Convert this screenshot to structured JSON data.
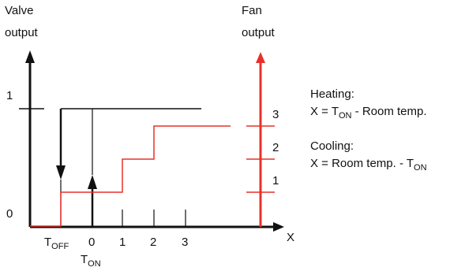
{
  "colors": {
    "black": "#111111",
    "red": "#e8302a"
  },
  "left_axis": {
    "title_line1": "Valve",
    "title_line2": "output",
    "tick_1": "1",
    "tick_0": "0"
  },
  "right_axis": {
    "title_line1": "Fan",
    "title_line2": "output",
    "levels": [
      "3",
      "2",
      "1"
    ]
  },
  "x_axis": {
    "label": "X",
    "ticks": [
      "1",
      "2",
      "3"
    ],
    "zero": "0",
    "t_off_main": "T",
    "t_off_sub": "OFF",
    "t_on_main": "T",
    "t_on_sub": "ON"
  },
  "legend": {
    "heating_title": "Heating:",
    "heating_eq_prefix": "X = T",
    "heating_eq_sub": "ON",
    "heating_eq_suffix": " - Room temp.",
    "cooling_title": "Cooling:",
    "cooling_eq_prefix": "X = Room temp. - T",
    "cooling_eq_sub": "ON"
  }
}
